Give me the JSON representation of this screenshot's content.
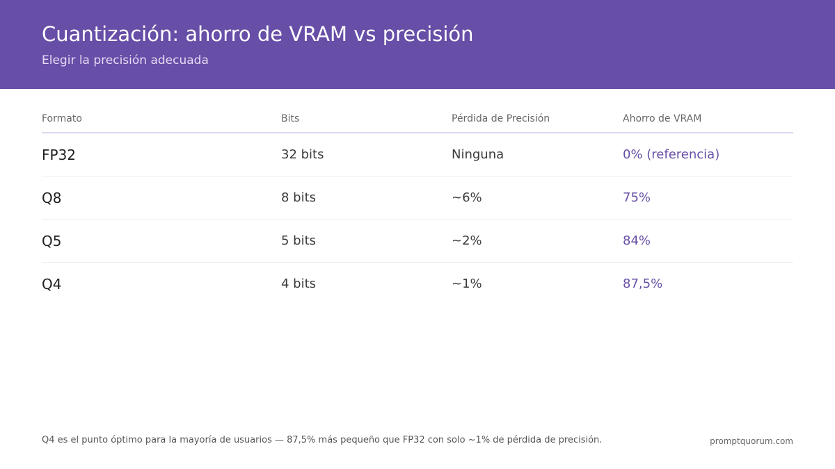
{
  "header": {
    "title": "Cuantización: ahorro de VRAM vs precisión",
    "subtitle": "Elegir la precisión adecuada"
  },
  "table": {
    "columns": [
      "Formato",
      "Bits",
      "Pérdida de Precisión",
      "Ahorro de VRAM"
    ],
    "rows": [
      [
        "FP32",
        "32 bits",
        "Ninguna",
        "0% (referencia)"
      ],
      [
        "Q8",
        "8 bits",
        "~6%",
        "75%"
      ],
      [
        "Q5",
        "5 bits",
        "~2%",
        "84%"
      ],
      [
        "Q4",
        "4 bits",
        "~1%",
        "87,5%"
      ]
    ]
  },
  "footer": {
    "note": "Q4 es el punto óptimo para la mayoría de usuarios — 87,5% más pequeño que FP32 con solo ~1% de pérdida de precisión.",
    "brand": "promptquorum.com"
  },
  "colors": {
    "header_bg": "#674ea7",
    "accent": "#674ea7"
  }
}
